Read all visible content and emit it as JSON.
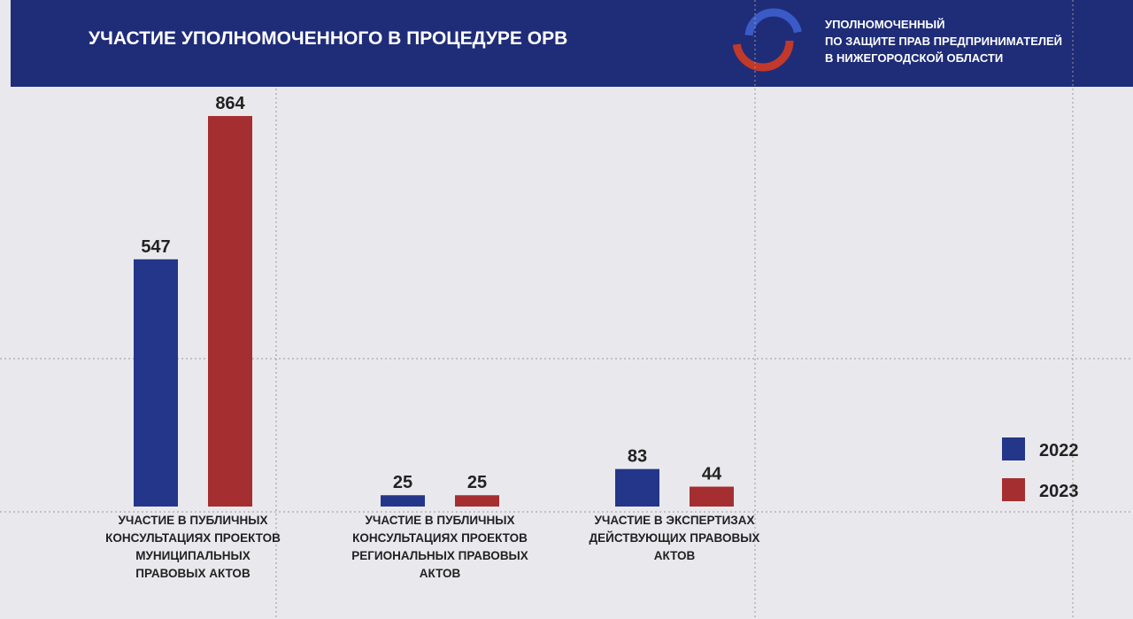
{
  "header": {
    "org_lines": [
      "УПОЛНОМОЧЕННЫЙ",
      "ПО ЗАЩИТЕ ПРАВ ПРЕДПРИНИМАТЕЛЕЙ",
      "В НИЖЕГОРОДСКОЙ ОБЛАСТИ"
    ]
  },
  "chart_data": {
    "type": "bar",
    "title": "УЧАСТИЕ УПОЛНОМОЧЕННОГО В ПРОЦЕДУРЕ ОРВ",
    "categories": [
      "УЧАСТИЕ В ПУБЛИЧНЫХ КОНСУЛЬТАЦИЯХ ПРОЕКТОВ МУНИЦИПАЛЬНЫХ ПРАВОВЫХ АКТОВ",
      "УЧАСТИЕ В ПУБЛИЧНЫХ КОНСУЛЬТАЦИЯХ ПРОЕКТОВ РЕГИОНАЛЬНЫХ ПРАВОВЫХ АКТОВ",
      "УЧАСТИЕ В ЭКСПЕРТИЗАХ ДЕЙСТВУЮЩИХ ПРАВОВЫХ АКТОВ"
    ],
    "series": [
      {
        "name": "2022",
        "color": "#24368a",
        "values": [
          547,
          25,
          83
        ]
      },
      {
        "name": "2023",
        "color": "#a52f30",
        "values": [
          864,
          25,
          44
        ]
      }
    ],
    "legend": "right"
  }
}
